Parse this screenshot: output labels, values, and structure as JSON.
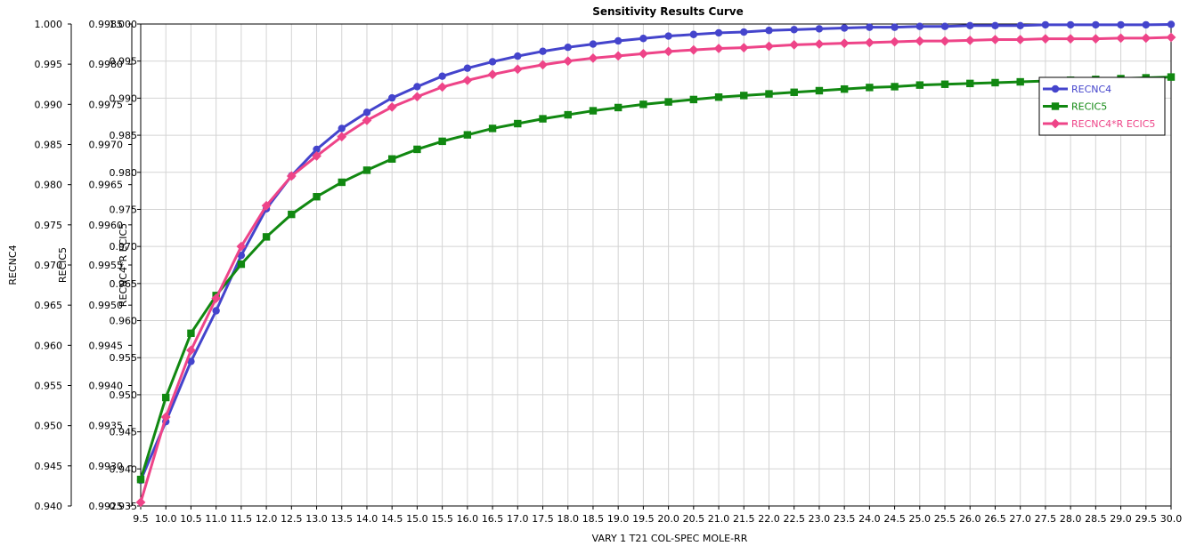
{
  "chart_data": {
    "type": "line",
    "title": "Sensitivity Results Curve",
    "xlabel": "VARY   1 T21 COL-SPEC MOLE-RR",
    "x": [
      9.5,
      10.0,
      10.5,
      11.0,
      11.5,
      12.0,
      12.5,
      13.0,
      13.5,
      14.0,
      14.5,
      15.0,
      15.5,
      16.0,
      16.5,
      17.0,
      17.5,
      18.0,
      18.5,
      19.0,
      19.5,
      20.0,
      20.5,
      21.0,
      21.5,
      22.0,
      22.5,
      23.0,
      23.5,
      24.0,
      24.5,
      25.0,
      25.5,
      26.0,
      26.5,
      27.0,
      27.5,
      28.0,
      28.5,
      29.0,
      29.5,
      30.0
    ],
    "x_tick_labels": [
      "9.5",
      "10.0",
      "10.5",
      "11.0",
      "11.5",
      "12.0",
      "12.5",
      "13.0",
      "13.5",
      "14.0",
      "14.5",
      "15.0",
      "15.5",
      "16.0",
      "16.5",
      "17.0",
      "17.5",
      "18.0",
      "18.5",
      "19.0",
      "19.5",
      "20.0",
      "20.5",
      "21.0",
      "21.5",
      "22.0",
      "22.5",
      "23.0",
      "23.5",
      "24.0",
      "24.5",
      "25.0",
      "25.5",
      "26.0",
      "26.5",
      "27.0",
      "27.5",
      "28.0",
      "28.5",
      "29.0",
      "29.5",
      "30.0"
    ],
    "axes": [
      {
        "label": "RECNC4",
        "ylim": [
          0.94,
          1.0
        ],
        "ticks": [
          "0.940",
          "0.945",
          "0.950",
          "0.955",
          "0.960",
          "0.965",
          "0.970",
          "0.975",
          "0.980",
          "0.985",
          "0.990",
          "0.995",
          "1.000"
        ]
      },
      {
        "label": "RECIC5",
        "ylim": [
          0.9925,
          0.9985
        ],
        "ticks": [
          "0.9925",
          "0.9930",
          "0.9935",
          "0.9940",
          "0.9945",
          "0.9950",
          "0.9955",
          "0.9960",
          "0.9965",
          "0.9970",
          "0.9975",
          "0.9980",
          "0.9985"
        ]
      },
      {
        "label": "RECNC4*R ECIC5",
        "ylim": [
          0.935,
          1.0
        ],
        "ticks": [
          "0.935",
          "0.940",
          "0.945",
          "0.950",
          "0.955",
          "0.960",
          "0.965",
          "0.970",
          "0.975",
          "0.980",
          "0.985",
          "0.990",
          "0.995",
          "1.000"
        ]
      }
    ],
    "series": [
      {
        "name": "RECNC4",
        "color": "#4444cc",
        "marker": "circle",
        "axis": 0,
        "values": [
          0.9432,
          0.9505,
          0.958,
          0.9643,
          0.9712,
          0.977,
          0.9811,
          0.9844,
          0.987,
          0.989,
          0.9908,
          0.9922,
          0.9935,
          0.9945,
          0.9953,
          0.996,
          0.9966,
          0.9971,
          0.9975,
          0.9979,
          0.9982,
          0.9985,
          0.9987,
          0.9989,
          0.999,
          0.9992,
          0.9993,
          0.9994,
          0.9995,
          0.9996,
          0.9996,
          0.9997,
          0.9997,
          0.9998,
          0.9998,
          0.9998,
          0.9999,
          0.9999,
          0.9999,
          0.9999,
          0.9999,
          0.99995
        ]
      },
      {
        "name": "RECIC5",
        "color": "#118811",
        "marker": "square",
        "axis": 1,
        "values": [
          0.99283,
          0.99385,
          0.99465,
          0.99512,
          0.99551,
          0.99585,
          0.99613,
          0.99635,
          0.99653,
          0.99668,
          0.99682,
          0.99694,
          0.99704,
          0.99712,
          0.9972,
          0.99726,
          0.99732,
          0.99737,
          0.99742,
          0.99746,
          0.9975,
          0.99753,
          0.99756,
          0.99759,
          0.99761,
          0.99763,
          0.99765,
          0.99767,
          0.99769,
          0.99771,
          0.99772,
          0.99774,
          0.99775,
          0.99776,
          0.99777,
          0.99778,
          0.99779,
          0.9978,
          0.99781,
          0.99782,
          0.99783,
          0.99784
        ]
      },
      {
        "name": "RECNC4*R ECIC5",
        "color": "#ee4488",
        "marker": "diamond",
        "axis": 2,
        "values": [
          0.9355,
          0.947,
          0.956,
          0.963,
          0.97,
          0.9755,
          0.9795,
          0.9822,
          0.9848,
          0.987,
          0.9888,
          0.9902,
          0.9915,
          0.9924,
          0.9932,
          0.9939,
          0.9945,
          0.995,
          0.9954,
          0.9957,
          0.996,
          0.9963,
          0.9965,
          0.9967,
          0.9968,
          0.997,
          0.9972,
          0.9973,
          0.9974,
          0.9975,
          0.9976,
          0.9977,
          0.9977,
          0.9978,
          0.9979,
          0.9979,
          0.998,
          0.998,
          0.998,
          0.9981,
          0.9981,
          0.9982
        ]
      }
    ],
    "grid": true,
    "legend_position": "top-right"
  }
}
